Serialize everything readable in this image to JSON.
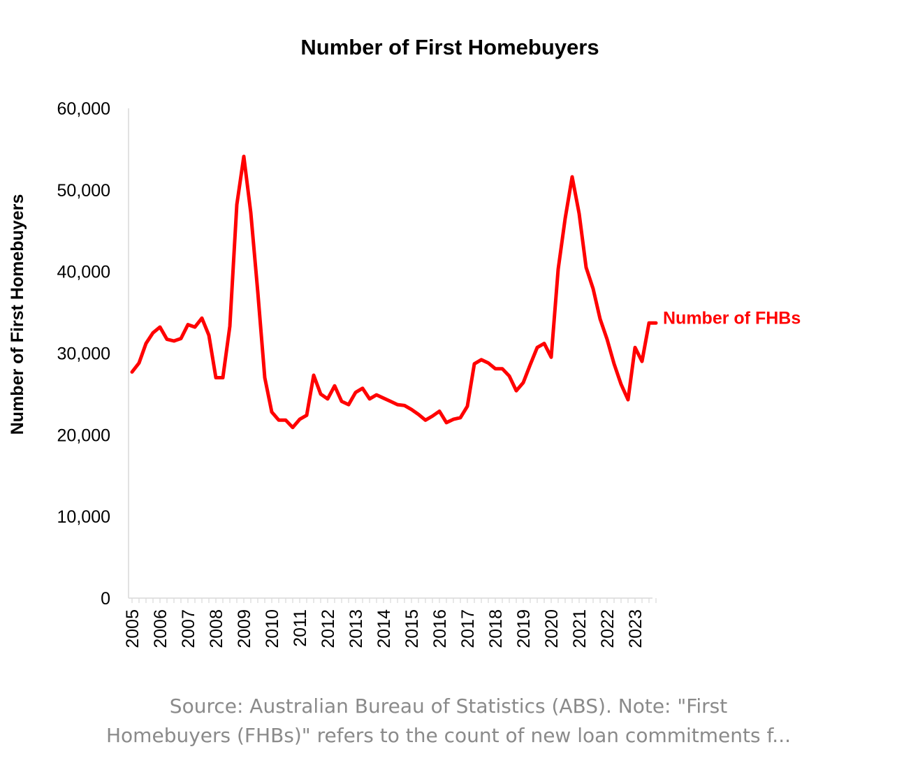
{
  "chart_data": {
    "type": "line",
    "title": "Number of First Homebuyers",
    "ylabel": "Number of First Homebuyers",
    "xlabel": "",
    "ylim": [
      0,
      60000
    ],
    "yticks": [
      "0",
      "10,000",
      "20,000",
      "30,000",
      "40,000",
      "50,000",
      "60,000"
    ],
    "ytick_values": [
      0,
      10000,
      20000,
      30000,
      40000,
      50000,
      60000
    ],
    "xlim": [
      2005,
      2023.75
    ],
    "xticks": [
      "2005",
      "2006",
      "2007",
      "2008",
      "2009",
      "2010",
      "2011",
      "2012",
      "2013",
      "2014",
      "2015",
      "2016",
      "2017",
      "2018",
      "2019",
      "2020",
      "2021",
      "2022",
      "2023"
    ],
    "grid": false,
    "series": [
      {
        "name": "Number of FHBs",
        "color": "#ff0000",
        "x": [
          2005,
          2005.25,
          2005.5,
          2005.75,
          2006,
          2006.25,
          2006.5,
          2006.75,
          2007,
          2007.25,
          2007.5,
          2007.75,
          2008,
          2008.25,
          2008.5,
          2008.75,
          2009,
          2009.25,
          2009.5,
          2009.75,
          2010,
          2010.25,
          2010.5,
          2010.75,
          2011,
          2011.25,
          2011.5,
          2011.75,
          2012,
          2012.25,
          2012.5,
          2012.75,
          2013,
          2013.25,
          2013.5,
          2013.75,
          2014,
          2014.25,
          2014.5,
          2014.75,
          2015,
          2015.25,
          2015.5,
          2015.75,
          2016,
          2016.25,
          2016.5,
          2016.75,
          2017,
          2017.25,
          2017.5,
          2017.75,
          2018,
          2018.25,
          2018.5,
          2018.75,
          2019,
          2019.25,
          2019.5,
          2019.75,
          2020,
          2020.25,
          2020.5,
          2020.75,
          2021,
          2021.25,
          2021.5,
          2021.75,
          2022,
          2022.25,
          2022.5,
          2022.75,
          2023,
          2023.25,
          2023.5,
          2023.75
        ],
        "values": [
          27700,
          28800,
          31200,
          32500,
          33200,
          31700,
          31500,
          31800,
          33500,
          33200,
          34300,
          32200,
          27000,
          27000,
          33300,
          48200,
          54100,
          47200,
          37500,
          27000,
          22800,
          21800,
          21800,
          20900,
          21900,
          22400,
          27300,
          25000,
          24400,
          26000,
          24100,
          23700,
          25200,
          25700,
          24400,
          24900,
          24500,
          24100,
          23700,
          23600,
          23100,
          22500,
          21800,
          22300,
          22900,
          21500,
          21900,
          22100,
          23500,
          28700,
          29200,
          28800,
          28100,
          28100,
          27200,
          25400,
          26400,
          28600,
          30700,
          31200,
          29500,
          40300,
          46500,
          51600,
          47100,
          40500,
          37900,
          34200,
          31700,
          28700,
          26200,
          24300,
          30700,
          29000,
          33700,
          33700
        ]
      }
    ]
  },
  "source_note": {
    "line1": "Source: Australian Bureau of Statistics (ABS). Note: \"First",
    "line2": "Homebuyers (FHBs)\" refers to the count of new loan commitments f..."
  }
}
